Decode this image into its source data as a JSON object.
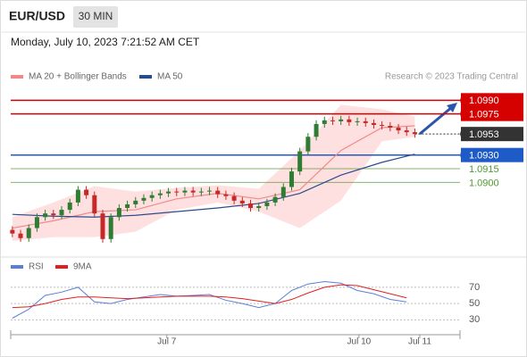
{
  "header": {
    "symbol": "EUR/USD",
    "timeframe": "30 MIN",
    "date": "Monday, July 10, 2023 7:21:52 AM CET",
    "source": "Research © 2023 Trading Central"
  },
  "chart_data": [
    {
      "type": "candlestick",
      "xlim": [
        -0.2,
        54.5
      ],
      "ylim": [
        1.083,
        1.1004
      ],
      "xticks": [
        {
          "value": 18.8,
          "label": "Jul 7"
        },
        {
          "value": 42.2,
          "label": "Jul 10"
        },
        {
          "value": 49.6,
          "label": "Jul 11"
        }
      ],
      "up_color": "#2e7d32",
      "down_color": "#c62828",
      "open": [
        1.0848,
        1.0844,
        1.0839,
        1.085,
        1.0862,
        1.0866,
        1.0864,
        1.087,
        1.0878,
        1.0892,
        1.0886,
        1.0866,
        1.0838,
        1.0862,
        1.0872,
        1.0876,
        1.088,
        1.0883,
        1.0886,
        1.0888,
        1.089,
        1.0889,
        1.0891,
        1.0889,
        1.089,
        1.0891,
        1.0887,
        1.0885,
        1.088,
        1.0877,
        1.0872,
        1.0874,
        1.0878,
        1.0884,
        1.0895,
        1.0912,
        1.0934,
        1.095,
        1.0964,
        1.0968,
        1.0967,
        1.0969,
        1.0966,
        1.0967,
        1.0965,
        1.0963,
        1.0962,
        1.096,
        1.0957,
        1.0955
      ],
      "high": [
        1.0852,
        1.0848,
        1.0854,
        1.0866,
        1.087,
        1.087,
        1.0874,
        1.0882,
        1.0896,
        1.0896,
        1.089,
        1.087,
        1.0866,
        1.0876,
        1.088,
        1.0884,
        1.0887,
        1.089,
        1.0892,
        1.0894,
        1.0894,
        1.0895,
        1.0895,
        1.0894,
        1.0895,
        1.0895,
        1.0891,
        1.0889,
        1.0884,
        1.0881,
        1.0878,
        1.0882,
        1.0888,
        1.0899,
        1.0916,
        1.0938,
        1.0954,
        1.0968,
        1.0972,
        1.0972,
        1.0973,
        1.0973,
        1.0971,
        1.0971,
        1.0969,
        1.0967,
        1.0966,
        1.0964,
        1.0961,
        1.0959
      ],
      "low": [
        1.084,
        1.0835,
        1.0835,
        1.0846,
        1.0858,
        1.086,
        1.086,
        1.0866,
        1.0874,
        1.0882,
        1.0862,
        1.0834,
        1.0834,
        1.0858,
        1.0868,
        1.0872,
        1.0876,
        1.0879,
        1.0882,
        1.0884,
        1.0885,
        1.0885,
        1.0885,
        1.0885,
        1.0886,
        1.0883,
        1.0881,
        1.0876,
        1.0873,
        1.0868,
        1.0868,
        1.087,
        1.0874,
        1.088,
        1.0891,
        1.0908,
        1.093,
        1.0946,
        1.096,
        1.0963,
        1.0963,
        1.0962,
        1.0962,
        1.0961,
        1.0959,
        1.0958,
        1.0956,
        1.0953,
        1.0951,
        1.0949
      ],
      "close": [
        1.0844,
        1.0839,
        1.085,
        1.0862,
        1.0866,
        1.0864,
        1.087,
        1.0878,
        1.0892,
        1.0886,
        1.0866,
        1.0838,
        1.0862,
        1.0872,
        1.0876,
        1.088,
        1.0883,
        1.0886,
        1.0888,
        1.089,
        1.0889,
        1.0891,
        1.0889,
        1.089,
        1.0891,
        1.0887,
        1.0885,
        1.088,
        1.0877,
        1.0872,
        1.0874,
        1.0878,
        1.0884,
        1.0895,
        1.0912,
        1.0934,
        1.095,
        1.0964,
        1.0968,
        1.0967,
        1.0969,
        1.0966,
        1.0967,
        1.0965,
        1.0963,
        1.0962,
        1.096,
        1.0957,
        1.0955,
        1.0953
      ],
      "bands": {
        "x": [
          0,
          5,
          10,
          15,
          20,
          25,
          30,
          35,
          40,
          45,
          49
        ],
        "upper": [
          1.0862,
          1.0878,
          1.0896,
          1.089,
          1.0894,
          1.0897,
          1.0893,
          1.0935,
          1.0985,
          1.098,
          1.0972
        ],
        "lower": [
          1.0836,
          1.084,
          1.084,
          1.0846,
          1.087,
          1.0878,
          1.0868,
          1.085,
          1.088,
          1.0945,
          1.095
        ],
        "color": "#ffcccc"
      },
      "series": [
        {
          "name": "MA 20 + Bollinger Bands",
          "color": "#f08a8a",
          "x": [
            0,
            5,
            10,
            15,
            20,
            25,
            30,
            35,
            40,
            45,
            49
          ],
          "values": [
            1.085,
            1.0858,
            1.0868,
            1.087,
            1.0882,
            1.0888,
            1.0882,
            1.0892,
            1.0935,
            1.096,
            1.0962
          ]
        },
        {
          "name": "MA 50",
          "color": "#2b4c8c",
          "x": [
            0,
            5,
            10,
            15,
            20,
            25,
            30,
            35,
            40,
            45,
            49
          ],
          "values": [
            1.0865,
            1.0863,
            1.0862,
            1.0864,
            1.0868,
            1.0872,
            1.0877,
            1.0888,
            1.0908,
            1.0922,
            1.0931
          ]
        }
      ],
      "levels": [
        {
          "value": 1.099,
          "label": "1.0990",
          "color": "#d50000",
          "box": true
        },
        {
          "value": 1.0975,
          "label": "1.0975",
          "color": "#d50000",
          "box": true
        },
        {
          "value": 1.0953,
          "label": "1.0953",
          "color": "#333333",
          "box": true,
          "dotted": true
        },
        {
          "value": 1.093,
          "label": "1.0930",
          "color": "#1e5bc6",
          "box": true
        },
        {
          "value": 1.0915,
          "label": "1.0915",
          "color": "#4f9a2f",
          "box": false
        },
        {
          "value": 1.09,
          "label": "1.0900",
          "color": "#4f9a2f",
          "box": false
        }
      ]
    },
    {
      "type": "line",
      "xlim": [
        -0.2,
        54.5
      ],
      "ylim": [
        15,
        83
      ],
      "yticks": [
        30,
        50,
        70
      ],
      "series": [
        {
          "name": "RSI",
          "color": "#5b7fd6",
          "x": [
            0,
            2,
            4,
            6,
            8,
            10,
            12,
            14,
            16,
            18,
            20,
            22,
            24,
            26,
            28,
            30,
            32,
            34,
            36,
            38,
            40,
            42,
            44,
            46,
            48
          ],
          "values": [
            32,
            43,
            60,
            64,
            70,
            52,
            50,
            55,
            58,
            61,
            59,
            60,
            61,
            54,
            50,
            45,
            50,
            66,
            74,
            77,
            75,
            66,
            62,
            55,
            52
          ]
        },
        {
          "name": "9MA",
          "color": "#e02020",
          "x": [
            0,
            2,
            4,
            6,
            8,
            10,
            12,
            14,
            16,
            18,
            20,
            22,
            24,
            26,
            28,
            30,
            32,
            34,
            36,
            38,
            40,
            42,
            44,
            46,
            48
          ],
          "values": [
            45,
            46,
            50,
            55,
            58,
            58,
            57,
            56,
            57,
            58,
            59,
            59,
            59,
            58,
            56,
            53,
            50,
            55,
            63,
            70,
            73,
            72,
            67,
            62,
            57
          ]
        }
      ]
    }
  ]
}
